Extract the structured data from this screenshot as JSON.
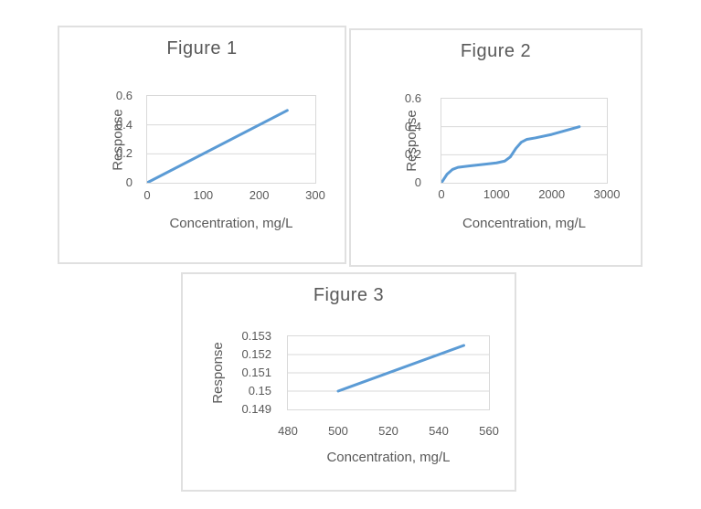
{
  "page": {
    "background": "#ffffff"
  },
  "styles": {
    "line_color": "#5b9bd5",
    "grid_color": "#d9d9d9",
    "text_color": "#595959",
    "box_border_color": "#e0e0e0"
  },
  "chart_data": [
    {
      "id": "figure-1",
      "type": "line",
      "title": "Figure 1",
      "xlabel": "Concentration, mg/L",
      "ylabel": "Response",
      "xlim": [
        0,
        300
      ],
      "ylim": [
        0,
        0.6
      ],
      "grid": true,
      "legend": "none",
      "x_ticks": [
        {
          "value": 0,
          "label": "0"
        },
        {
          "value": 100,
          "label": "100"
        },
        {
          "value": 200,
          "label": "200"
        },
        {
          "value": 300,
          "label": "300"
        }
      ],
      "y_ticks": [
        {
          "value": 0,
          "label": "0"
        },
        {
          "value": 0.2,
          "label": "0.2"
        },
        {
          "value": 0.4,
          "label": "0.4"
        },
        {
          "value": 0.6,
          "label": "0.6"
        }
      ],
      "series": [
        {
          "name": "Response",
          "x": [
            0,
            250
          ],
          "y": [
            0,
            0.5
          ]
        }
      ]
    },
    {
      "id": "figure-2",
      "type": "line",
      "title": "Figure 2",
      "xlabel": "Concentration, mg/L",
      "ylabel": "Response",
      "xlim": [
        0,
        3000
      ],
      "ylim": [
        0,
        0.6
      ],
      "grid": true,
      "legend": "none",
      "x_ticks": [
        {
          "value": 0,
          "label": "0"
        },
        {
          "value": 1000,
          "label": "1000"
        },
        {
          "value": 2000,
          "label": "2000"
        },
        {
          "value": 3000,
          "label": "3000"
        }
      ],
      "y_ticks": [
        {
          "value": 0,
          "label": "0"
        },
        {
          "value": 0.2,
          "label": "0.2"
        },
        {
          "value": 0.4,
          "label": "0.4"
        },
        {
          "value": 0.6,
          "label": "0.6"
        }
      ],
      "series": [
        {
          "name": "Response",
          "x": [
            0,
            100,
            200,
            300,
            500,
            800,
            1000,
            1150,
            1250,
            1350,
            1450,
            1550,
            1700,
            2000,
            2500
          ],
          "y": [
            0,
            0.06,
            0.095,
            0.11,
            0.12,
            0.133,
            0.142,
            0.155,
            0.185,
            0.245,
            0.29,
            0.31,
            0.32,
            0.345,
            0.4
          ]
        }
      ]
    },
    {
      "id": "figure-3",
      "type": "line",
      "title": "Figure 3",
      "xlabel": "Concentration, mg/L",
      "ylabel": "Response",
      "xlim": [
        480,
        560
      ],
      "ylim": [
        0.149,
        0.153
      ],
      "grid": true,
      "legend": "none",
      "x_ticks": [
        {
          "value": 480,
          "label": "480"
        },
        {
          "value": 500,
          "label": "500"
        },
        {
          "value": 520,
          "label": "520"
        },
        {
          "value": 540,
          "label": "540"
        },
        {
          "value": 560,
          "label": "560"
        }
      ],
      "y_ticks": [
        {
          "value": 0.149,
          "label": "0.149"
        },
        {
          "value": 0.15,
          "label": "0.15"
        },
        {
          "value": 0.151,
          "label": "0.151"
        },
        {
          "value": 0.152,
          "label": "0.152"
        },
        {
          "value": 0.153,
          "label": "0.153"
        }
      ],
      "series": [
        {
          "name": "Response",
          "x": [
            500,
            550
          ],
          "y": [
            0.15,
            0.1525
          ]
        }
      ]
    }
  ]
}
